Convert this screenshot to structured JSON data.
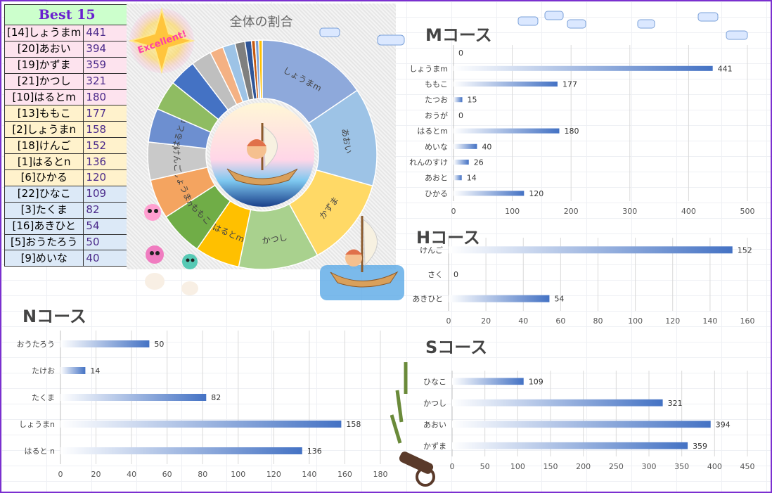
{
  "ranking": {
    "title": "Best 15",
    "rows": [
      {
        "name": "[14]しょうまm",
        "score": "441",
        "group": "g1"
      },
      {
        "name": "[20]あおい",
        "score": "394",
        "group": "g1"
      },
      {
        "name": "[19]かずま",
        "score": "359",
        "group": "g1"
      },
      {
        "name": "[21]かつし",
        "score": "321",
        "group": "g1"
      },
      {
        "name": "[10]はるとm",
        "score": "180",
        "group": "g1"
      },
      {
        "name": "[13]ももこ",
        "score": "177",
        "group": "g2"
      },
      {
        "name": "[2]しょうまn",
        "score": "158",
        "group": "g2"
      },
      {
        "name": "[18]けんご",
        "score": "152",
        "group": "g2"
      },
      {
        "name": "[1]はるとn",
        "score": "136",
        "group": "g2"
      },
      {
        "name": "[6]ひかる",
        "score": "120",
        "group": "g2"
      },
      {
        "name": "[22]ひなこ",
        "score": "109",
        "group": "g3"
      },
      {
        "name": "[3]たくま",
        "score": "82",
        "group": "g3"
      },
      {
        "name": "[16]あきひと",
        "score": "54",
        "group": "g3"
      },
      {
        "name": "[5]おうたろう",
        "score": "50",
        "group": "g3"
      },
      {
        "name": "[9]めいな",
        "score": "40",
        "group": "g3"
      }
    ]
  },
  "badge_text": "Excellent!",
  "chart_data": [
    {
      "id": "pie",
      "type": "pie",
      "title": "全体の割合",
      "categories": [
        "しょうまm",
        "あおい",
        "かずま",
        "かつし",
        "はるとm",
        "ももこ",
        "しょうまn",
        "けんご",
        "はるとｎ",
        "",
        "",
        "",
        "",
        "",
        "",
        "",
        "",
        "",
        ""
      ],
      "values": [
        441,
        394,
        359,
        321,
        180,
        177,
        158,
        152,
        136,
        120,
        109,
        82,
        54,
        50,
        40,
        26,
        15,
        14,
        14
      ],
      "colors": [
        "#8ea9db",
        "#9dc3e6",
        "#ffd966",
        "#a9d18e",
        "#ffc000",
        "#70ad47",
        "#f4a460",
        "#c9c9c9",
        "#6d8fd0",
        "#8fbc62",
        "#4472c4",
        "#bfbfbf",
        "#f4b183",
        "#9dc3e6",
        "#7f7f7f",
        "#2f5597",
        "#c55a11",
        "#7aa0d8",
        "#ffc000"
      ]
    },
    {
      "id": "m",
      "type": "bar",
      "title": "Mコース",
      "categories": [
        "",
        "しょうまm",
        "ももこ",
        "たつお",
        "おうが",
        "はるとm",
        "めいな",
        "れんのすけ",
        "あおと",
        "ひかる"
      ],
      "values": [
        0,
        441,
        177,
        15,
        0,
        180,
        40,
        26,
        14,
        120
      ],
      "xlim": [
        0,
        500
      ],
      "ticks": [
        0,
        100,
        200,
        300,
        400,
        500
      ]
    },
    {
      "id": "h",
      "type": "bar",
      "title": "Hコース",
      "categories": [
        "けんご",
        "さく",
        "あきひと"
      ],
      "values": [
        152,
        0,
        54
      ],
      "xlim": [
        0,
        160
      ],
      "ticks": [
        0,
        20,
        40,
        60,
        80,
        100,
        120,
        140,
        160
      ]
    },
    {
      "id": "n",
      "type": "bar",
      "title": "Nコース",
      "categories": [
        "おうたろう",
        "たけお",
        "たくま",
        "しょうまn",
        "はると n"
      ],
      "values": [
        50,
        14,
        82,
        158,
        136
      ],
      "xlim": [
        0,
        180
      ],
      "ticks": [
        0,
        20,
        40,
        60,
        80,
        100,
        120,
        140,
        160,
        180
      ]
    },
    {
      "id": "s",
      "type": "bar",
      "title": "Sコース",
      "categories": [
        "ひなこ",
        "かつし",
        "あおい",
        "かずま"
      ],
      "values": [
        109,
        321,
        394,
        359
      ],
      "xlim": [
        0,
        450
      ],
      "ticks": [
        0,
        50,
        100,
        150,
        200,
        250,
        300,
        350,
        400,
        450
      ]
    }
  ]
}
